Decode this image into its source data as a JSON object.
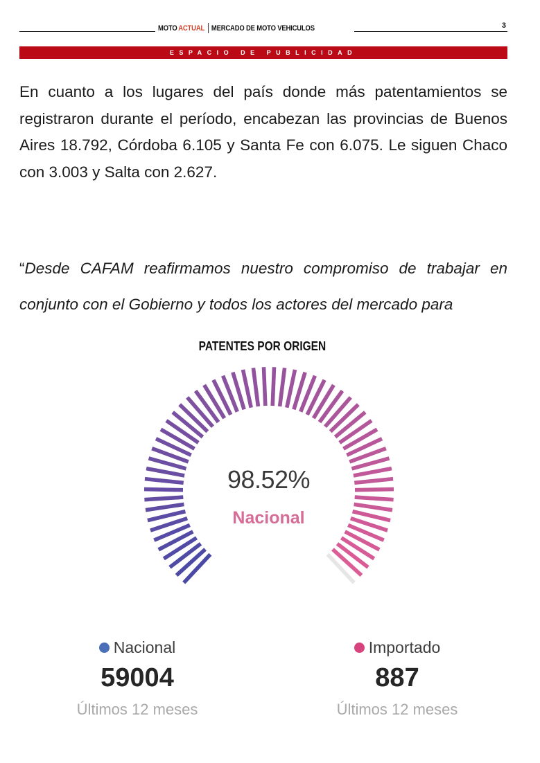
{
  "header": {
    "brand_part1": "MOTO",
    "brand_part2": "ACTUAL",
    "section": "MERCADO DE MOTO VEHICULOS",
    "page_number": "3",
    "brand_color": "#d4412b"
  },
  "ad_band": {
    "label": "ESPACIO DE PUBLICIDAD",
    "color": "#bb0a16"
  },
  "paragraph": "En cuanto a los lugares del país donde más patentamientos se registraron durante el período, encabezan las provincias de Buenos Aires 18.792,  Córdoba 6.105 y Santa Fe con 6.075. Le siguen Chaco con 3.003 y Salta con 2.627.",
  "quote": {
    "open_mark": "“",
    "text": "Desde CAFAM reafirmamos nuestro compromiso de trabajar en conjunto con el Gobierno y todos los actores del mercado para"
  },
  "chart_data": {
    "type": "gauge",
    "title": "PATENTES POR ORIGEN",
    "center_value": "98.52%",
    "center_label": "Nacional",
    "percent": 98.52,
    "gradient_colors": [
      "#4a4aa6",
      "#df5c95"
    ],
    "series": [
      {
        "name": "Nacional",
        "value": 59004,
        "value_label": "59004",
        "period": "Últimos 12 meses",
        "color": "#4a6fb8"
      },
      {
        "name": "Importado",
        "value": 887,
        "value_label": "887",
        "period": "Últimos 12 meses",
        "color": "#d7437d"
      }
    ]
  }
}
